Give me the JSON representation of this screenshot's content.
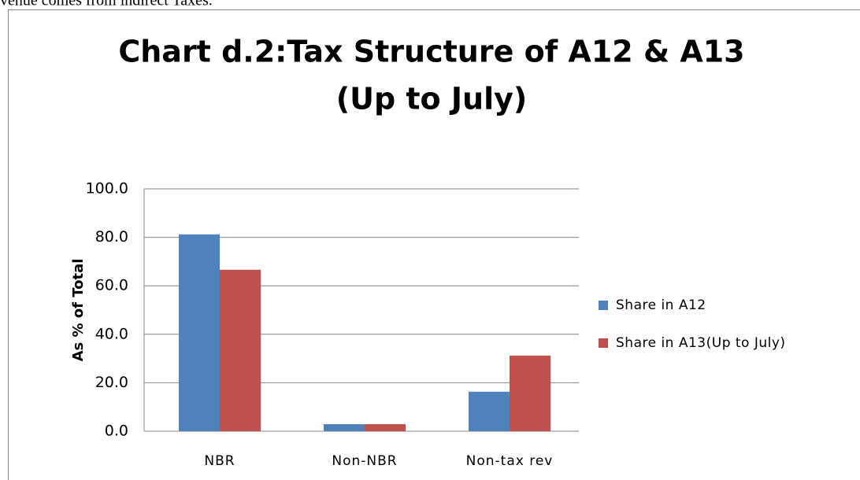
{
  "context_text": "venue comes from indirect Taxes.",
  "chart_data": {
    "type": "bar",
    "title": [
      "Chart d.2:Tax Structure of A12 & A13",
      "(Up to July)"
    ],
    "y_label": "As % of Total",
    "categories": [
      "NBR",
      "Non-NBR",
      "Non-tax rev"
    ],
    "series": [
      {
        "name": "Share in A12",
        "color": "#4f81bd",
        "values": [
          81.2,
          2.9,
          16.3
        ]
      },
      {
        "name": "Share in A13(Up to July)",
        "color": "#c0504d",
        "values": [
          66.6,
          2.9,
          31.2
        ]
      }
    ],
    "ylim": [
      0,
      100
    ],
    "yticks": [
      {
        "value": 0,
        "label": "0.0"
      },
      {
        "value": 20,
        "label": "20.0"
      },
      {
        "value": 40,
        "label": "40.0"
      },
      {
        "value": 60,
        "label": "60.0"
      },
      {
        "value": 80,
        "label": "80.0"
      },
      {
        "value": 100,
        "label": "100.0"
      }
    ],
    "grid": true,
    "legend": "right"
  }
}
